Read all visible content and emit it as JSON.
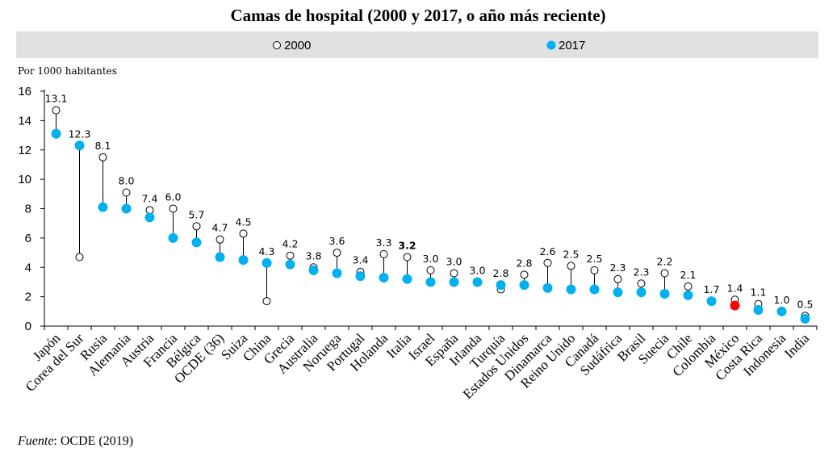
{
  "chart_data": {
    "type": "dot",
    "title": "Camas de hospital (2000 y 2017, o año más reciente)",
    "ylabel": "Por 1000 habitantes",
    "ylim": [
      0,
      16
    ],
    "yticks": [
      0,
      2,
      4,
      6,
      8,
      10,
      12,
      14,
      16
    ],
    "categories": [
      "Japón",
      "Corea del Sur",
      "Rusia",
      "Alemania",
      "Austria",
      "Francia",
      "Bélgica",
      "OCDE (36)",
      "Suiza",
      "China",
      "Grecia",
      "Australia",
      "Noruega",
      "Portugal",
      "Holanda",
      "Italia",
      "Israel",
      "España",
      "Irlanda",
      "Turquía",
      "Estados Unidos",
      "Dinamarca",
      "Reino Unido",
      "Canadá",
      "Sudáfrica",
      "Brasil",
      "Suecia",
      "Chile",
      "Colombia",
      "México",
      "Costa Rica",
      "Indonesia",
      "India"
    ],
    "series": [
      {
        "name": "2000",
        "marker": "hollow",
        "color": "#ffffff",
        "values": [
          14.7,
          4.7,
          11.5,
          9.1,
          7.9,
          8.0,
          6.8,
          5.9,
          6.3,
          1.7,
          4.8,
          4.0,
          5.0,
          3.7,
          4.9,
          4.7,
          3.8,
          3.6,
          null,
          2.5,
          3.5,
          4.3,
          4.1,
          3.8,
          3.2,
          2.9,
          3.6,
          2.7,
          null,
          1.8,
          1.5,
          null,
          0.7
        ]
      },
      {
        "name": "2017",
        "marker": "filled",
        "color": "#00b0f0",
        "values": [
          13.1,
          12.3,
          8.1,
          8.0,
          7.4,
          6.0,
          5.7,
          4.7,
          4.5,
          4.3,
          4.2,
          3.8,
          3.6,
          3.4,
          3.3,
          3.2,
          3.0,
          3.0,
          3.0,
          2.8,
          2.8,
          2.6,
          2.5,
          2.5,
          2.3,
          2.3,
          2.2,
          2.1,
          1.7,
          1.4,
          1.1,
          1.0,
          0.5
        ]
      }
    ],
    "data_labels": [
      "13.1",
      "12.3",
      "8.1",
      "8.0",
      "7.4",
      "6.0",
      "5.7",
      "4.7",
      "4.5",
      "4.3",
      "4.2",
      "3.8",
      "3.6",
      "3.4",
      "3.3",
      "3.2",
      "3.0",
      "3.0",
      "3.0",
      "2.8",
      "2.8",
      "2.6",
      "2.5",
      "2.5",
      "2.3",
      "2.3",
      "2.2",
      "2.1",
      "1.7",
      "1.4",
      "1.1",
      "1.0",
      "0.5"
    ],
    "highlight": {
      "category": "México",
      "color": "#ff0000"
    },
    "bold_label": "Italia",
    "legend": {
      "position": "top",
      "entries": [
        "2000",
        "2017"
      ]
    },
    "grid": false
  },
  "source": {
    "label": "Fuente",
    "text": ": OCDE (2019)"
  }
}
